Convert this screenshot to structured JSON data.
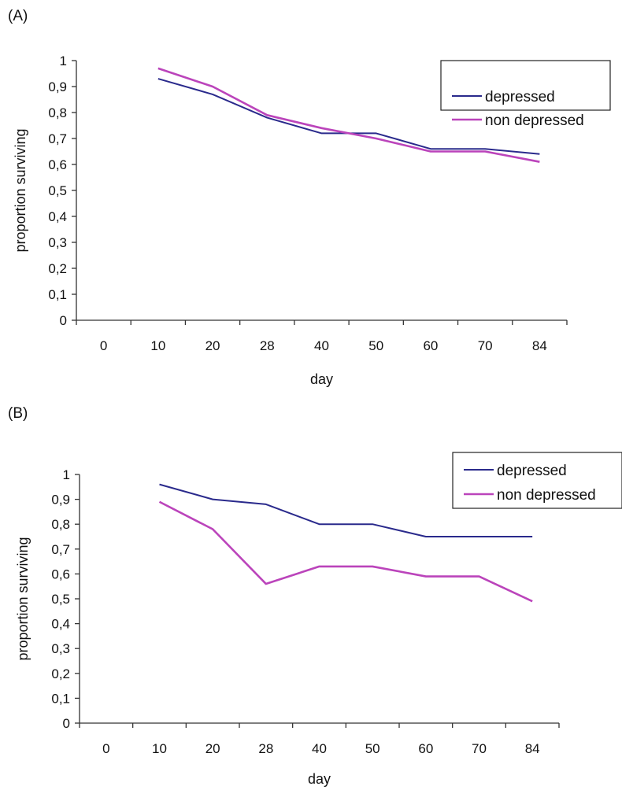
{
  "colors": {
    "depressed": "#2a2a8c",
    "non_depressed": "#bb44bb"
  },
  "chart_data": [
    {
      "type": "line",
      "panel": "(A)",
      "title": "",
      "xlabel": "day",
      "ylabel": "proportion surviving",
      "categories": [
        "0",
        "10",
        "20",
        "28",
        "40",
        "50",
        "60",
        "70",
        "84"
      ],
      "ylim": [
        0,
        1
      ],
      "yticks": [
        "0",
        "0,1",
        "0,2",
        "0,3",
        "0,4",
        "0,5",
        "0,6",
        "0,7",
        "0,8",
        "0,9",
        "1"
      ],
      "legend": "top-right",
      "series": [
        {
          "name": "depressed",
          "values": [
            null,
            0.93,
            0.87,
            0.78,
            0.72,
            0.72,
            0.66,
            0.66,
            0.64
          ]
        },
        {
          "name": "non depressed",
          "values": [
            null,
            0.97,
            0.9,
            0.79,
            0.74,
            0.7,
            0.65,
            0.65,
            0.61
          ]
        }
      ]
    },
    {
      "type": "line",
      "panel": "(B)",
      "title": "",
      "xlabel": "day",
      "ylabel": "proportion surviving",
      "categories": [
        "0",
        "10",
        "20",
        "28",
        "40",
        "50",
        "60",
        "70",
        "84"
      ],
      "ylim": [
        0,
        1
      ],
      "yticks": [
        "0",
        "0,1",
        "0,2",
        "0,3",
        "0,4",
        "0,5",
        "0,6",
        "0,7",
        "0,8",
        "0,9",
        "1"
      ],
      "legend": "top-right",
      "series": [
        {
          "name": "depressed",
          "values": [
            null,
            0.96,
            0.9,
            0.88,
            0.8,
            0.8,
            0.75,
            0.75,
            0.75
          ]
        },
        {
          "name": "non depressed",
          "values": [
            null,
            0.89,
            0.78,
            0.56,
            0.63,
            0.63,
            0.59,
            0.59,
            0.49
          ]
        }
      ]
    }
  ]
}
